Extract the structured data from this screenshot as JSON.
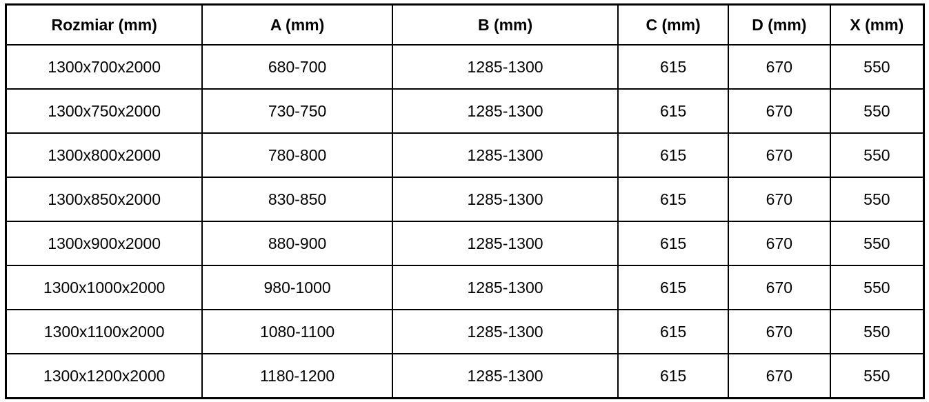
{
  "colors": {
    "border": "#000000",
    "text": "#000000",
    "background": "#ffffff"
  },
  "table": {
    "columns": [
      "Rozmiar (mm)",
      "A (mm)",
      "B (mm)",
      "C (mm)",
      "D (mm)",
      "X (mm)"
    ],
    "rows": [
      [
        "1300x700x2000",
        "680-700",
        "1285-1300",
        "615",
        "670",
        "550"
      ],
      [
        "1300x750x2000",
        "730-750",
        "1285-1300",
        "615",
        "670",
        "550"
      ],
      [
        "1300x800x2000",
        "780-800",
        "1285-1300",
        "615",
        "670",
        "550"
      ],
      [
        "1300x850x2000",
        "830-850",
        "1285-1300",
        "615",
        "670",
        "550"
      ],
      [
        "1300x900x2000",
        "880-900",
        "1285-1300",
        "615",
        "670",
        "550"
      ],
      [
        "1300x1000x2000",
        "980-1000",
        "1285-1300",
        "615",
        "670",
        "550"
      ],
      [
        "1300x1100x2000",
        "1080-1100",
        "1285-1300",
        "615",
        "670",
        "550"
      ],
      [
        "1300x1200x2000",
        "1180-1200",
        "1285-1300",
        "615",
        "670",
        "550"
      ]
    ]
  },
  "chart_data": {
    "type": "table",
    "title": "",
    "categories": [
      "Rozmiar (mm)",
      "A (mm)",
      "B (mm)",
      "C (mm)",
      "D (mm)",
      "X (mm)"
    ],
    "rows": [
      [
        "1300x700x2000",
        "680-700",
        "1285-1300",
        "615",
        "670",
        "550"
      ],
      [
        "1300x750x2000",
        "730-750",
        "1285-1300",
        "615",
        "670",
        "550"
      ],
      [
        "1300x800x2000",
        "780-800",
        "1285-1300",
        "615",
        "670",
        "550"
      ],
      [
        "1300x850x2000",
        "830-850",
        "1285-1300",
        "615",
        "670",
        "550"
      ],
      [
        "1300x900x2000",
        "880-900",
        "1285-1300",
        "615",
        "670",
        "550"
      ],
      [
        "1300x1000x2000",
        "980-1000",
        "1285-1300",
        "615",
        "670",
        "550"
      ],
      [
        "1300x1100x2000",
        "1080-1100",
        "1285-1300",
        "615",
        "670",
        "550"
      ],
      [
        "1300x1200x2000",
        "1180-1200",
        "1285-1300",
        "615",
        "670",
        "550"
      ]
    ]
  }
}
